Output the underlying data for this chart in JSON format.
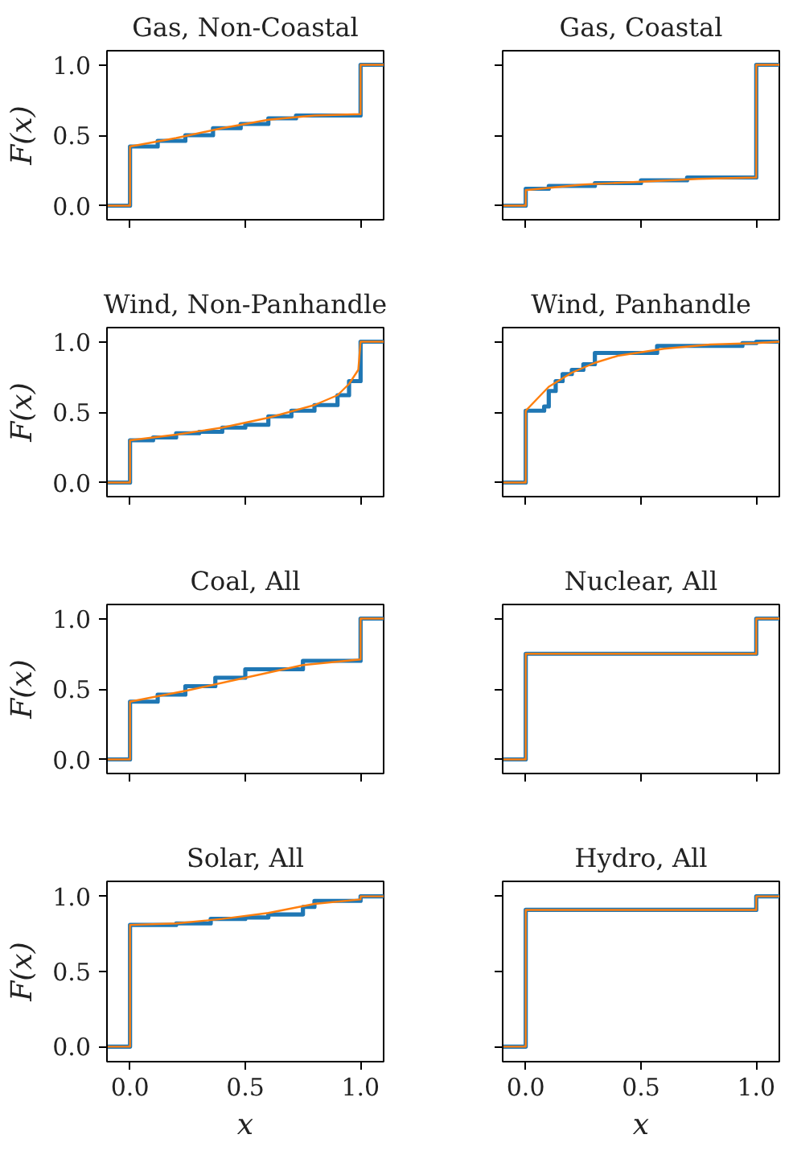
{
  "chart_data": [
    {
      "type": "line",
      "title": "Gas, Non-Coastal",
      "ylabel": "F(x)",
      "xlim": [
        -0.1,
        1.1
      ],
      "ylim": [
        -0.1,
        1.1
      ],
      "xticks": [
        {
          "value": 0,
          "label": null
        },
        {
          "value": 0.5,
          "label": null
        },
        {
          "value": 1,
          "label": null
        }
      ],
      "yticks": [
        {
          "value": 0,
          "label": "0.0"
        },
        {
          "value": 0.5,
          "label": "0.5"
        },
        {
          "value": 1,
          "label": "1.0"
        }
      ],
      "tick_labels": "y",
      "series": [
        {
          "type": "step",
          "color": "#1f77b4",
          "x": [
            -0.1,
            0,
            0.12,
            0.24,
            0.36,
            0.48,
            0.6,
            0.72,
            1.0,
            1.1
          ],
          "values": [
            0,
            0.42,
            0.46,
            0.5,
            0.55,
            0.58,
            0.62,
            0.64,
            1.0,
            1.0
          ]
        },
        {
          "color": "#ff7f0e",
          "x": [
            -0.1,
            0,
            0,
            0.2,
            0.4,
            0.6,
            0.8,
            1.0,
            1.0,
            1.1
          ],
          "values": [
            0,
            0,
            0.42,
            0.48,
            0.55,
            0.61,
            0.64,
            0.65,
            1.0,
            1.0
          ]
        }
      ]
    },
    {
      "type": "line",
      "title": "Gas, Coastal",
      "xlim": [
        -0.1,
        1.1
      ],
      "ylim": [
        -0.1,
        1.1
      ],
      "xticks": [
        {
          "value": 0,
          "label": null
        },
        {
          "value": 0.5,
          "label": null
        },
        {
          "value": 1,
          "label": null
        }
      ],
      "yticks": [
        {
          "value": 0,
          "label": null
        },
        {
          "value": 0.5,
          "label": null
        },
        {
          "value": 1,
          "label": null
        }
      ],
      "tick_labels": false,
      "series": [
        {
          "type": "step",
          "color": "#1f77b4",
          "x": [
            -0.1,
            0,
            0.1,
            0.3,
            0.5,
            0.7,
            1.0,
            1.1
          ],
          "values": [
            0,
            0.12,
            0.14,
            0.16,
            0.18,
            0.2,
            1.0,
            1.0
          ]
        },
        {
          "color": "#ff7f0e",
          "x": [
            -0.1,
            0,
            0,
            0.25,
            0.5,
            0.75,
            1.0,
            1.0,
            1.1
          ],
          "values": [
            0,
            0,
            0.11,
            0.15,
            0.17,
            0.19,
            0.2,
            1.0,
            1.0
          ]
        }
      ]
    },
    {
      "type": "line",
      "title": "Wind, Non-Panhandle",
      "ylabel": "F(x)",
      "xlim": [
        -0.1,
        1.1
      ],
      "ylim": [
        -0.1,
        1.1
      ],
      "xticks": [
        {
          "value": 0,
          "label": null
        },
        {
          "value": 0.5,
          "label": null
        },
        {
          "value": 1,
          "label": null
        }
      ],
      "yticks": [
        {
          "value": 0,
          "label": "0.0"
        },
        {
          "value": 0.5,
          "label": "0.5"
        },
        {
          "value": 1,
          "label": "1.0"
        }
      ],
      "tick_labels": "y",
      "series": [
        {
          "type": "step",
          "color": "#1f77b4",
          "x": [
            -0.1,
            0,
            0.1,
            0.2,
            0.3,
            0.4,
            0.5,
            0.6,
            0.7,
            0.8,
            0.9,
            0.95,
            1.0,
            1.1
          ],
          "values": [
            0,
            0.3,
            0.32,
            0.35,
            0.36,
            0.39,
            0.41,
            0.47,
            0.51,
            0.55,
            0.62,
            0.72,
            1.0,
            1.0
          ]
        },
        {
          "color": "#ff7f0e",
          "x": [
            -0.1,
            0,
            0,
            0.2,
            0.4,
            0.6,
            0.8,
            0.9,
            0.95,
            0.99,
            1.0,
            1.1
          ],
          "values": [
            0,
            0,
            0.3,
            0.34,
            0.39,
            0.46,
            0.55,
            0.62,
            0.7,
            0.8,
            1.0,
            1.0
          ]
        }
      ]
    },
    {
      "type": "line",
      "title": "Wind, Panhandle",
      "xlim": [
        -0.1,
        1.1
      ],
      "ylim": [
        -0.1,
        1.1
      ],
      "xticks": [
        {
          "value": 0,
          "label": null
        },
        {
          "value": 0.5,
          "label": null
        },
        {
          "value": 1,
          "label": null
        }
      ],
      "yticks": [
        {
          "value": 0,
          "label": null
        },
        {
          "value": 0.5,
          "label": null
        },
        {
          "value": 1,
          "label": null
        }
      ],
      "tick_labels": false,
      "series": [
        {
          "type": "step",
          "color": "#1f77b4",
          "x": [
            -0.1,
            0,
            0.08,
            0.1,
            0.13,
            0.16,
            0.2,
            0.25,
            0.3,
            0.57,
            0.94,
            1.0,
            1.1
          ],
          "values": [
            0,
            0.51,
            0.54,
            0.65,
            0.72,
            0.77,
            0.8,
            0.84,
            0.92,
            0.97,
            0.99,
            1.0,
            1.0
          ]
        },
        {
          "color": "#ff7f0e",
          "x": [
            -0.1,
            0,
            0,
            0.1,
            0.2,
            0.3,
            0.4,
            0.6,
            0.8,
            1.0,
            1.1
          ],
          "values": [
            0,
            0,
            0.51,
            0.68,
            0.78,
            0.85,
            0.9,
            0.95,
            0.98,
            0.99,
            1.0
          ]
        }
      ]
    },
    {
      "type": "line",
      "title": "Coal, All",
      "ylabel": "F(x)",
      "xlim": [
        -0.1,
        1.1
      ],
      "ylim": [
        -0.1,
        1.1
      ],
      "xticks": [
        {
          "value": 0,
          "label": null
        },
        {
          "value": 0.5,
          "label": null
        },
        {
          "value": 1,
          "label": null
        }
      ],
      "yticks": [
        {
          "value": 0,
          "label": "0.0"
        },
        {
          "value": 0.5,
          "label": "0.5"
        },
        {
          "value": 1,
          "label": "1.0"
        }
      ],
      "tick_labels": "y",
      "series": [
        {
          "type": "step",
          "color": "#1f77b4",
          "x": [
            -0.1,
            0,
            0.12,
            0.24,
            0.37,
            0.5,
            0.75,
            1.0,
            1.1
          ],
          "values": [
            0,
            0.41,
            0.46,
            0.52,
            0.58,
            0.64,
            0.7,
            1.0,
            1.0
          ]
        },
        {
          "color": "#ff7f0e",
          "x": [
            -0.1,
            0,
            0,
            0.25,
            0.5,
            0.75,
            1.0,
            1.0,
            1.1
          ],
          "values": [
            0,
            0,
            0.41,
            0.49,
            0.58,
            0.67,
            0.71,
            1.0,
            1.0
          ]
        }
      ]
    },
    {
      "type": "line",
      "title": "Nuclear, All",
      "xlim": [
        -0.1,
        1.1
      ],
      "ylim": [
        -0.1,
        1.1
      ],
      "xticks": [
        {
          "value": 0,
          "label": null
        },
        {
          "value": 0.5,
          "label": null
        },
        {
          "value": 1,
          "label": null
        }
      ],
      "yticks": [
        {
          "value": 0,
          "label": null
        },
        {
          "value": 0.5,
          "label": null
        },
        {
          "value": 1,
          "label": null
        }
      ],
      "tick_labels": false,
      "series": [
        {
          "type": "step",
          "color": "#1f77b4",
          "x": [
            -0.1,
            0,
            1.0,
            1.1
          ],
          "values": [
            0,
            0.75,
            1.0,
            1.0
          ]
        },
        {
          "color": "#ff7f0e",
          "x": [
            -0.1,
            0,
            0,
            1.0,
            1.0,
            1.1
          ],
          "values": [
            0,
            0,
            0.75,
            0.75,
            1.0,
            1.0
          ]
        }
      ]
    },
    {
      "type": "line",
      "title": "Solar, All",
      "xlabel": "x",
      "ylabel": "F(x)",
      "xlim": [
        -0.1,
        1.1
      ],
      "ylim": [
        -0.1,
        1.1
      ],
      "xticks": [
        {
          "value": 0,
          "label": "0.0"
        },
        {
          "value": 0.5,
          "label": "0.5"
        },
        {
          "value": 1,
          "label": "1.0"
        }
      ],
      "yticks": [
        {
          "value": 0,
          "label": "0.0"
        },
        {
          "value": 0.5,
          "label": "0.5"
        },
        {
          "value": 1,
          "label": "1.0"
        }
      ],
      "series": [
        {
          "type": "step",
          "color": "#1f77b4",
          "x": [
            -0.1,
            0,
            0.2,
            0.35,
            0.5,
            0.6,
            0.75,
            0.8,
            1.0,
            1.1
          ],
          "values": [
            0,
            0.81,
            0.82,
            0.85,
            0.86,
            0.88,
            0.93,
            0.97,
            1.0,
            1.0
          ]
        },
        {
          "color": "#ff7f0e",
          "x": [
            -0.1,
            0,
            0,
            0.2,
            0.4,
            0.6,
            0.8,
            1.0,
            1.0,
            1.1
          ],
          "values": [
            0,
            0,
            0.81,
            0.82,
            0.85,
            0.89,
            0.95,
            0.98,
            1.0,
            1.0
          ]
        }
      ]
    },
    {
      "type": "line",
      "title": "Hydro, All",
      "xlabel": "x",
      "xlim": [
        -0.1,
        1.1
      ],
      "ylim": [
        -0.1,
        1.1
      ],
      "xticks": [
        {
          "value": 0,
          "label": "0.0"
        },
        {
          "value": 0.5,
          "label": "0.5"
        },
        {
          "value": 1,
          "label": "1.0"
        }
      ],
      "yticks": [
        {
          "value": 0,
          "label": null
        },
        {
          "value": 0.5,
          "label": null
        },
        {
          "value": 1,
          "label": null
        }
      ],
      "tick_labels": "x",
      "series": [
        {
          "type": "step",
          "color": "#1f77b4",
          "x": [
            -0.1,
            0,
            1.0,
            1.1
          ],
          "values": [
            0,
            0.91,
            1.0,
            1.0
          ]
        },
        {
          "color": "#ff7f0e",
          "x": [
            -0.1,
            0,
            0,
            1.0,
            1.0,
            1.1
          ],
          "values": [
            0,
            0,
            0.91,
            0.91,
            1.0,
            1.0
          ]
        }
      ]
    }
  ]
}
